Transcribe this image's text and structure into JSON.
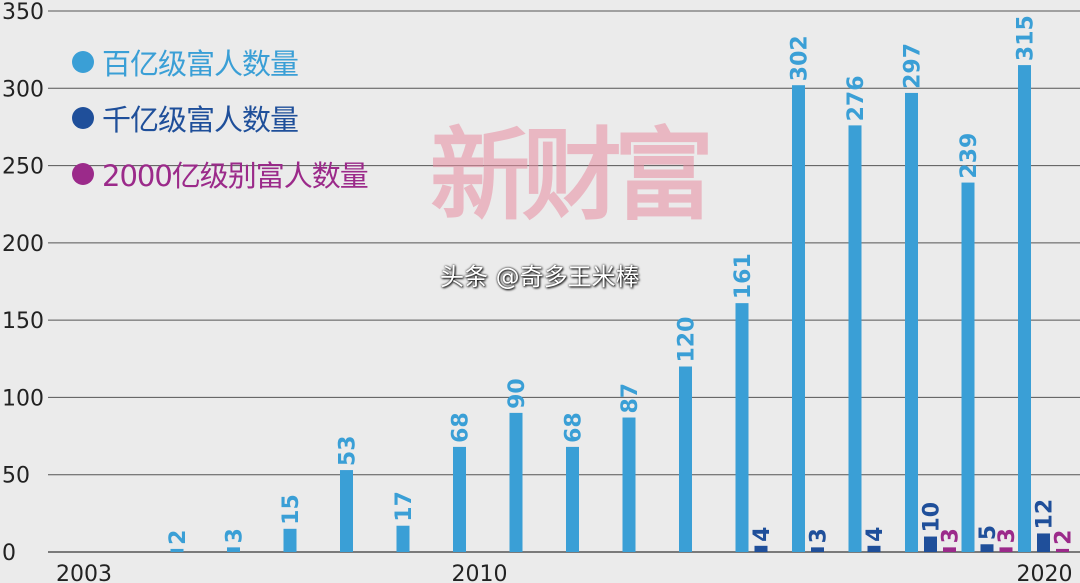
{
  "chart_data": {
    "type": "bar",
    "title": "",
    "xlabel": "",
    "ylabel": "",
    "ylim": [
      0,
      350
    ],
    "yticks": [
      0,
      50,
      100,
      150,
      200,
      250,
      300,
      350
    ],
    "grid": true,
    "legend_position": "top-left",
    "categories": [
      2003,
      2004,
      2005,
      2006,
      2007,
      2008,
      2009,
      2010,
      2011,
      2012,
      2013,
      2014,
      2015,
      2016,
      2017,
      2018,
      2019,
      2020
    ],
    "xtick_labels": {
      "2003": "2003",
      "2010": "2010",
      "2020": "2020"
    },
    "series": [
      {
        "name": "百亿级富人数量",
        "color": "#3a9fd6",
        "values": [
          0,
          0,
          2,
          3,
          15,
          53,
          17,
          68,
          90,
          68,
          87,
          120,
          161,
          302,
          276,
          297,
          239,
          315
        ]
      },
      {
        "name": "千亿级富人数量",
        "color": "#1f4f9a",
        "values": [
          0,
          0,
          0,
          0,
          0,
          0,
          0,
          0,
          0,
          0,
          0,
          0,
          4,
          3,
          4,
          10,
          5,
          12
        ]
      },
      {
        "name": "2000亿级别富人数量",
        "color": "#9b2a8a",
        "values": [
          0,
          0,
          0,
          0,
          0,
          0,
          0,
          0,
          0,
          0,
          0,
          0,
          0,
          0,
          0,
          3,
          3,
          2
        ]
      }
    ]
  },
  "watermark": "新财富",
  "credit": "头条 @奇多王米棒"
}
